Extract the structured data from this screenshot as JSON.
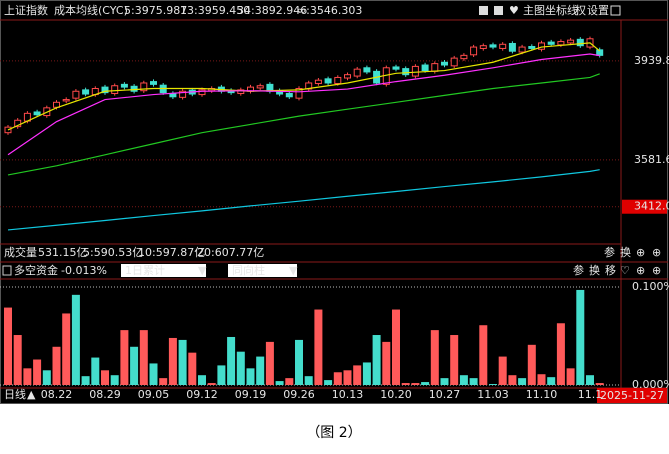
{
  "chart_data": [
    {
      "type": "candlestick",
      "title": "上证指数",
      "subtitle": "成本均线(CYC)",
      "categories": [
        null,
        null,
        null,
        null,
        null,
        "08.22",
        null,
        null,
        null,
        null,
        "08.29",
        null,
        null,
        null,
        null,
        "09.05",
        null,
        null,
        null,
        null,
        "09.12",
        null,
        null,
        null,
        null,
        "09.19",
        null,
        null,
        null,
        null,
        "09.26",
        null,
        null,
        null,
        null,
        "10.13",
        null,
        null,
        null,
        null,
        "10.20",
        null,
        null,
        null,
        null,
        "10.27",
        null,
        null,
        null,
        null,
        "11.03",
        null,
        null,
        null,
        null,
        "11.10",
        null,
        null,
        null,
        null,
        "11.1",
        null
      ],
      "open": [
        3680,
        3702,
        3722,
        3755,
        3742,
        3772,
        3795,
        3805,
        3835,
        3818,
        3845,
        3822,
        3855,
        3848,
        3832,
        3865,
        3852,
        3822,
        3808,
        3834,
        3818,
        3832,
        3845,
        3833,
        3822,
        3830,
        3842,
        3855,
        3832,
        3822,
        3805,
        3838,
        3858,
        3875,
        3858,
        3878,
        3885,
        3915,
        3902,
        3855,
        3918,
        3912,
        3885,
        3925,
        3902,
        3935,
        3922,
        3948,
        3962,
        3985,
        3998,
        3985,
        4003,
        3972,
        3992,
        3982,
        4008,
        3998,
        4005,
        4018,
        3990,
        3980
      ],
      "high": [
        3708,
        3733,
        3758,
        3763,
        3778,
        3798,
        3808,
        3838,
        3843,
        3848,
        3853,
        3858,
        3863,
        3856,
        3868,
        3873,
        3860,
        3830,
        3838,
        3842,
        3843,
        3848,
        3853,
        3841,
        3843,
        3853,
        3858,
        3863,
        3840,
        3830,
        3848,
        3868,
        3878,
        3883,
        3888,
        3898,
        3918,
        3923,
        3910,
        3923,
        3926,
        3920,
        3928,
        3933,
        3938,
        3943,
        3958,
        3968,
        3998,
        4003,
        4006,
        4008,
        4011,
        3998,
        4000,
        4013,
        4016,
        4018,
        4023,
        4026,
        4028,
        3988
      ],
      "low": [
        3672,
        3694,
        3714,
        3737,
        3734,
        3764,
        3787,
        3797,
        3812,
        3810,
        3817,
        3814,
        3837,
        3822,
        3824,
        3847,
        3817,
        3802,
        3800,
        3812,
        3810,
        3824,
        3822,
        3817,
        3814,
        3822,
        3834,
        3822,
        3812,
        3802,
        3797,
        3830,
        3850,
        3852,
        3850,
        3870,
        3877,
        3892,
        3852,
        3847,
        3902,
        3882,
        3877,
        3897,
        3894,
        3917,
        3914,
        3940,
        3954,
        3977,
        3982,
        3977,
        3967,
        3964,
        3977,
        3974,
        3992,
        3990,
        3997,
        3987,
        3982,
        3952
      ],
      "close": [
        3700,
        3725,
        3750,
        3745,
        3770,
        3790,
        3800,
        3830,
        3820,
        3840,
        3825,
        3850,
        3845,
        3830,
        3860,
        3855,
        3825,
        3810,
        3830,
        3820,
        3835,
        3840,
        3830,
        3825,
        3835,
        3845,
        3850,
        3830,
        3820,
        3810,
        3840,
        3860,
        3870,
        3860,
        3880,
        3890,
        3910,
        3900,
        3860,
        3915,
        3910,
        3890,
        3920,
        3905,
        3930,
        3925,
        3950,
        3960,
        3990,
        3995,
        3990,
        4000,
        3975,
        3990,
        3985,
        4005,
        4000,
        4010,
        4015,
        3995,
        4020,
        3960
      ],
      "up_color": "#ff4a4a",
      "down_color": "#40e0d0",
      "series": [
        {
          "name": "5:3975.987",
          "color": "#e6e600",
          "x": [
            0,
            5,
            10,
            15,
            20,
            25,
            30,
            35,
            40,
            45,
            50,
            55,
            60,
            61
          ],
          "values": [
            3690,
            3770,
            3830,
            3840,
            3840,
            3830,
            3835,
            3860,
            3895,
            3905,
            3935,
            3990,
            4005,
            3976
          ]
        },
        {
          "name": "13:3959.450",
          "color": "#ff30ff",
          "x": [
            0,
            5,
            10,
            15,
            20,
            25,
            30,
            35,
            40,
            45,
            50,
            55,
            60,
            61
          ],
          "values": [
            3600,
            3720,
            3800,
            3818,
            3830,
            3832,
            3828,
            3838,
            3865,
            3888,
            3915,
            3945,
            3965,
            3959
          ]
        },
        {
          "name": "34:3892.946",
          "color": "#22c822",
          "x": [
            0,
            5,
            10,
            15,
            20,
            25,
            30,
            35,
            40,
            45,
            50,
            55,
            60,
            61
          ],
          "values": [
            3527,
            3560,
            3600,
            3640,
            3680,
            3710,
            3740,
            3765,
            3790,
            3815,
            3840,
            3860,
            3880,
            3893
          ]
        },
        {
          "name": "∞:3546.303",
          "color": "#10c8e0",
          "x": [
            0,
            5,
            10,
            15,
            20,
            25,
            30,
            35,
            40,
            45,
            50,
            55,
            60,
            61
          ],
          "values": [
            3328,
            3345,
            3362,
            3380,
            3397,
            3415,
            3432,
            3450,
            3467,
            3485,
            3502,
            3520,
            3540,
            3546
          ]
        }
      ],
      "ylim": [
        3277,
        4088
      ],
      "yticks": [
        3939.8,
        3581.6,
        {
          "value": 3412,
          "label": "3412.0"
        }
      ],
      "highlight_tick": 2,
      "volume": {
        "label": "成交量",
        "value": "531.15亿",
        "ma": [
          {
            "text": "5:590.53亿",
            "color": "#e6e600"
          },
          {
            "text": "10:597.87亿",
            "color": "#ff30ff"
          },
          {
            "text": "20:607.77亿",
            "color": "#22c822"
          }
        ]
      }
    },
    {
      "type": "bar",
      "title": "多空资金",
      "subtitle": "-0.013%",
      "values": [
        0.079,
        0.051,
        0.017,
        0.026,
        0.015,
        0.039,
        0.073,
        0.092,
        0.009,
        0.028,
        0.015,
        0.01,
        0.056,
        0.039,
        0.056,
        0.022,
        0.007,
        0.048,
        0.046,
        0.033,
        0.01,
        0.002,
        0.02,
        0.049,
        0.034,
        0.017,
        0.029,
        0.044,
        0.004,
        0.007,
        0.046,
        0.009,
        0.077,
        0.005,
        0.013,
        0.015,
        0.02,
        0.023,
        0.051,
        0.044,
        0.077,
        0.002,
        0.002,
        0.003,
        0.056,
        0.007,
        0.051,
        0.01,
        0.007,
        0.061,
        0.001,
        0.029,
        0.01,
        0.007,
        0.041,
        0.011,
        0.008,
        0.063,
        0.017,
        0.097,
        0.01,
        0.002
      ],
      "colors": [
        "#ff5a5a",
        "#ff5a5a",
        "#ff5a5a",
        "#ff5a5a",
        "#44ddcc",
        "#ff5a5a",
        "#ff5a5a",
        "#44ddcc",
        "#44ddcc",
        "#44ddcc",
        "#ff5a5a",
        "#44ddcc",
        "#ff5a5a",
        "#44ddcc",
        "#ff5a5a",
        "#44ddcc",
        "#ff5a5a",
        "#ff5a5a",
        "#44ddcc",
        "#ff5a5a",
        "#44ddcc",
        "#ff5a5a",
        "#44ddcc",
        "#44ddcc",
        "#44ddcc",
        "#44ddcc",
        "#44ddcc",
        "#ff5a5a",
        "#44ddcc",
        "#ff5a5a",
        "#44ddcc",
        "#44ddcc",
        "#ff5a5a",
        "#44ddcc",
        "#ff5a5a",
        "#ff5a5a",
        "#ff5a5a",
        "#44ddcc",
        "#44ddcc",
        "#ff5a5a",
        "#ff5a5a",
        "#ff5a5a",
        "#ff5a5a",
        "#44ddcc",
        "#ff5a5a",
        "#44ddcc",
        "#ff5a5a",
        "#44ddcc",
        "#44ddcc",
        "#ff5a5a",
        "#44ddcc",
        "#ff5a5a",
        "#ff5a5a",
        "#44ddcc",
        "#ff5a5a",
        "#ff5a5a",
        "#44ddcc",
        "#ff5a5a",
        "#ff5a5a",
        "#44ddcc",
        "#44ddcc",
        "#ff5a5a"
      ],
      "ylim": [
        0,
        0.1
      ],
      "yticks": [
        {
          "value": 0.1,
          "label": "0.100%"
        },
        {
          "value": 0,
          "label": "0.000%"
        }
      ],
      "dropdowns": [
        "1日累计",
        "同向柱"
      ]
    }
  ],
  "toolbar": [
    "主图",
    "坐标线",
    "权",
    "设置"
  ],
  "volume_buttons": [
    "参",
    "换"
  ],
  "panel_buttons": [
    "参",
    "换",
    "移"
  ],
  "period": "日线",
  "current_date": "2025-11-27",
  "caption": "（图 2）"
}
